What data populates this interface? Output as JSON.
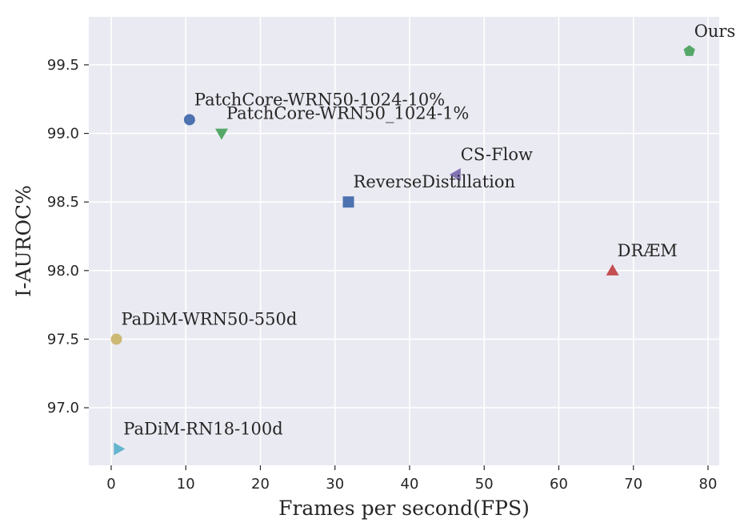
{
  "chart_data": {
    "type": "scatter",
    "title": "",
    "xlabel": "Frames per second(FPS)",
    "ylabel": "I-AUROC%",
    "xlim": [
      -3,
      81.5
    ],
    "ylim": [
      96.58,
      99.85
    ],
    "xticks": [
      0,
      10,
      20,
      30,
      40,
      50,
      60,
      70,
      80
    ],
    "yticks": [
      97.0,
      97.5,
      98.0,
      98.5,
      99.0,
      99.5
    ],
    "xtick_labels": [
      "0",
      "10",
      "20",
      "30",
      "40",
      "50",
      "60",
      "70",
      "80"
    ],
    "ytick_labels": [
      "97.0",
      "97.5",
      "98.0",
      "98.5",
      "99.0",
      "99.5"
    ],
    "grid": true,
    "background": "#eaeaf2",
    "points": [
      {
        "label": "PatchCore-WRN50-1024-10%",
        "x": 10.5,
        "y": 99.1,
        "marker": "circle",
        "color": "#4c72b0"
      },
      {
        "label": "PatchCore-WRN50_1024-1%",
        "x": 14.8,
        "y": 99.0,
        "marker": "triangle-down",
        "color": "#55a868"
      },
      {
        "label": "CS-Flow",
        "x": 46.2,
        "y": 98.7,
        "marker": "triangle-left",
        "color": "#8172b2"
      },
      {
        "label": "ReverseDistillation",
        "x": 31.8,
        "y": 98.5,
        "marker": "square",
        "color": "#4c72b0"
      },
      {
        "label": "DRÆM",
        "x": 67.2,
        "y": 98.0,
        "marker": "triangle-up",
        "color": "#c44e52"
      },
      {
        "label": "Ours",
        "x": 77.5,
        "y": 99.6,
        "marker": "pentagon",
        "color": "#55a868"
      },
      {
        "label": "PaDiM-WRN50-550d",
        "x": 0.7,
        "y": 97.5,
        "marker": "circle",
        "color": "#ccb974"
      },
      {
        "label": "PaDiM-RN18-100d",
        "x": 1.0,
        "y": 96.7,
        "marker": "triangle-right",
        "color": "#64b5cd"
      }
    ]
  }
}
